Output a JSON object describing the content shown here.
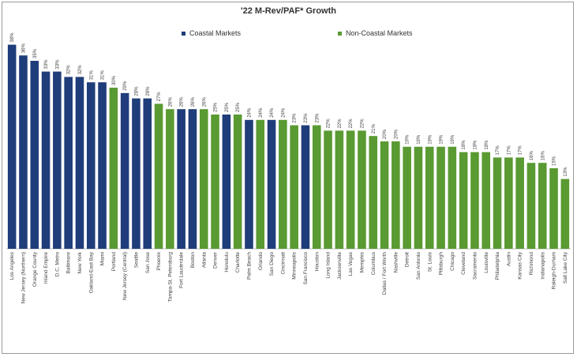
{
  "chart_data": {
    "type": "bar",
    "title": "'22 M-Rev/PAF* Growth",
    "xlabel": "",
    "ylabel": "",
    "ylim": [
      0,
      40
    ],
    "value_suffix": "%",
    "legend": [
      {
        "name": "Coastal Markets",
        "color": "#1f3d7a"
      },
      {
        "name": "Non-Coastal Markets",
        "color": "#5a9a32"
      }
    ],
    "categories": [
      "Los Angeles",
      "New Jersey (Northern)",
      "Orange County",
      "Inland Empire",
      "D.C. Metro",
      "Baltimore",
      "New York",
      "Oakland-East Bay",
      "Miami",
      "Portland",
      "New Jersey (Central)",
      "Seattle",
      "San Jose",
      "Phoenix",
      "Tampa-St. Petersburg",
      "Fort Lauderdale",
      "Boston",
      "Atlanta",
      "Denver",
      "Honolulu",
      "Charlotte",
      "Palm Beach",
      "Orlando",
      "San Diego",
      "Cincinnati",
      "Minneapolis",
      "San Francisco",
      "Houston",
      "Long Island",
      "Jacksonville",
      "Las Vegas",
      "Memphis",
      "Columbus",
      "Dallas / Fort Worth",
      "Nashville",
      "Detroit",
      "San Antonio",
      "St. Louis",
      "Pittsburgh",
      "Chicago",
      "Cleveland",
      "Sacramento",
      "Louisville",
      "Philadelphia",
      "Austin",
      "Kansas City",
      "Richmond",
      "Indianapolis",
      "Raleigh-Durham",
      "Salt Lake City"
    ],
    "values": [
      38,
      36,
      35,
      33,
      33,
      32,
      32,
      31,
      31,
      30,
      29,
      28,
      28,
      27,
      26,
      26,
      26,
      26,
      25,
      25,
      25,
      24,
      24,
      24,
      24,
      23,
      23,
      23,
      22,
      22,
      22,
      22,
      21,
      20,
      20,
      19,
      19,
      19,
      19,
      19,
      18,
      18,
      18,
      17,
      17,
      17,
      16,
      16,
      15,
      13
    ],
    "groups": [
      "coastal",
      "coastal",
      "coastal",
      "coastal",
      "coastal",
      "coastal",
      "coastal",
      "coastal",
      "coastal",
      "noncoastal",
      "coastal",
      "coastal",
      "coastal",
      "noncoastal",
      "noncoastal",
      "coastal",
      "coastal",
      "noncoastal",
      "noncoastal",
      "coastal",
      "noncoastal",
      "coastal",
      "noncoastal",
      "coastal",
      "noncoastal",
      "noncoastal",
      "coastal",
      "noncoastal",
      "noncoastal",
      "noncoastal",
      "noncoastal",
      "noncoastal",
      "noncoastal",
      "noncoastal",
      "noncoastal",
      "noncoastal",
      "noncoastal",
      "noncoastal",
      "noncoastal",
      "noncoastal",
      "noncoastal",
      "noncoastal",
      "noncoastal",
      "noncoastal",
      "noncoastal",
      "noncoastal",
      "noncoastal",
      "noncoastal",
      "noncoastal",
      "noncoastal"
    ]
  }
}
